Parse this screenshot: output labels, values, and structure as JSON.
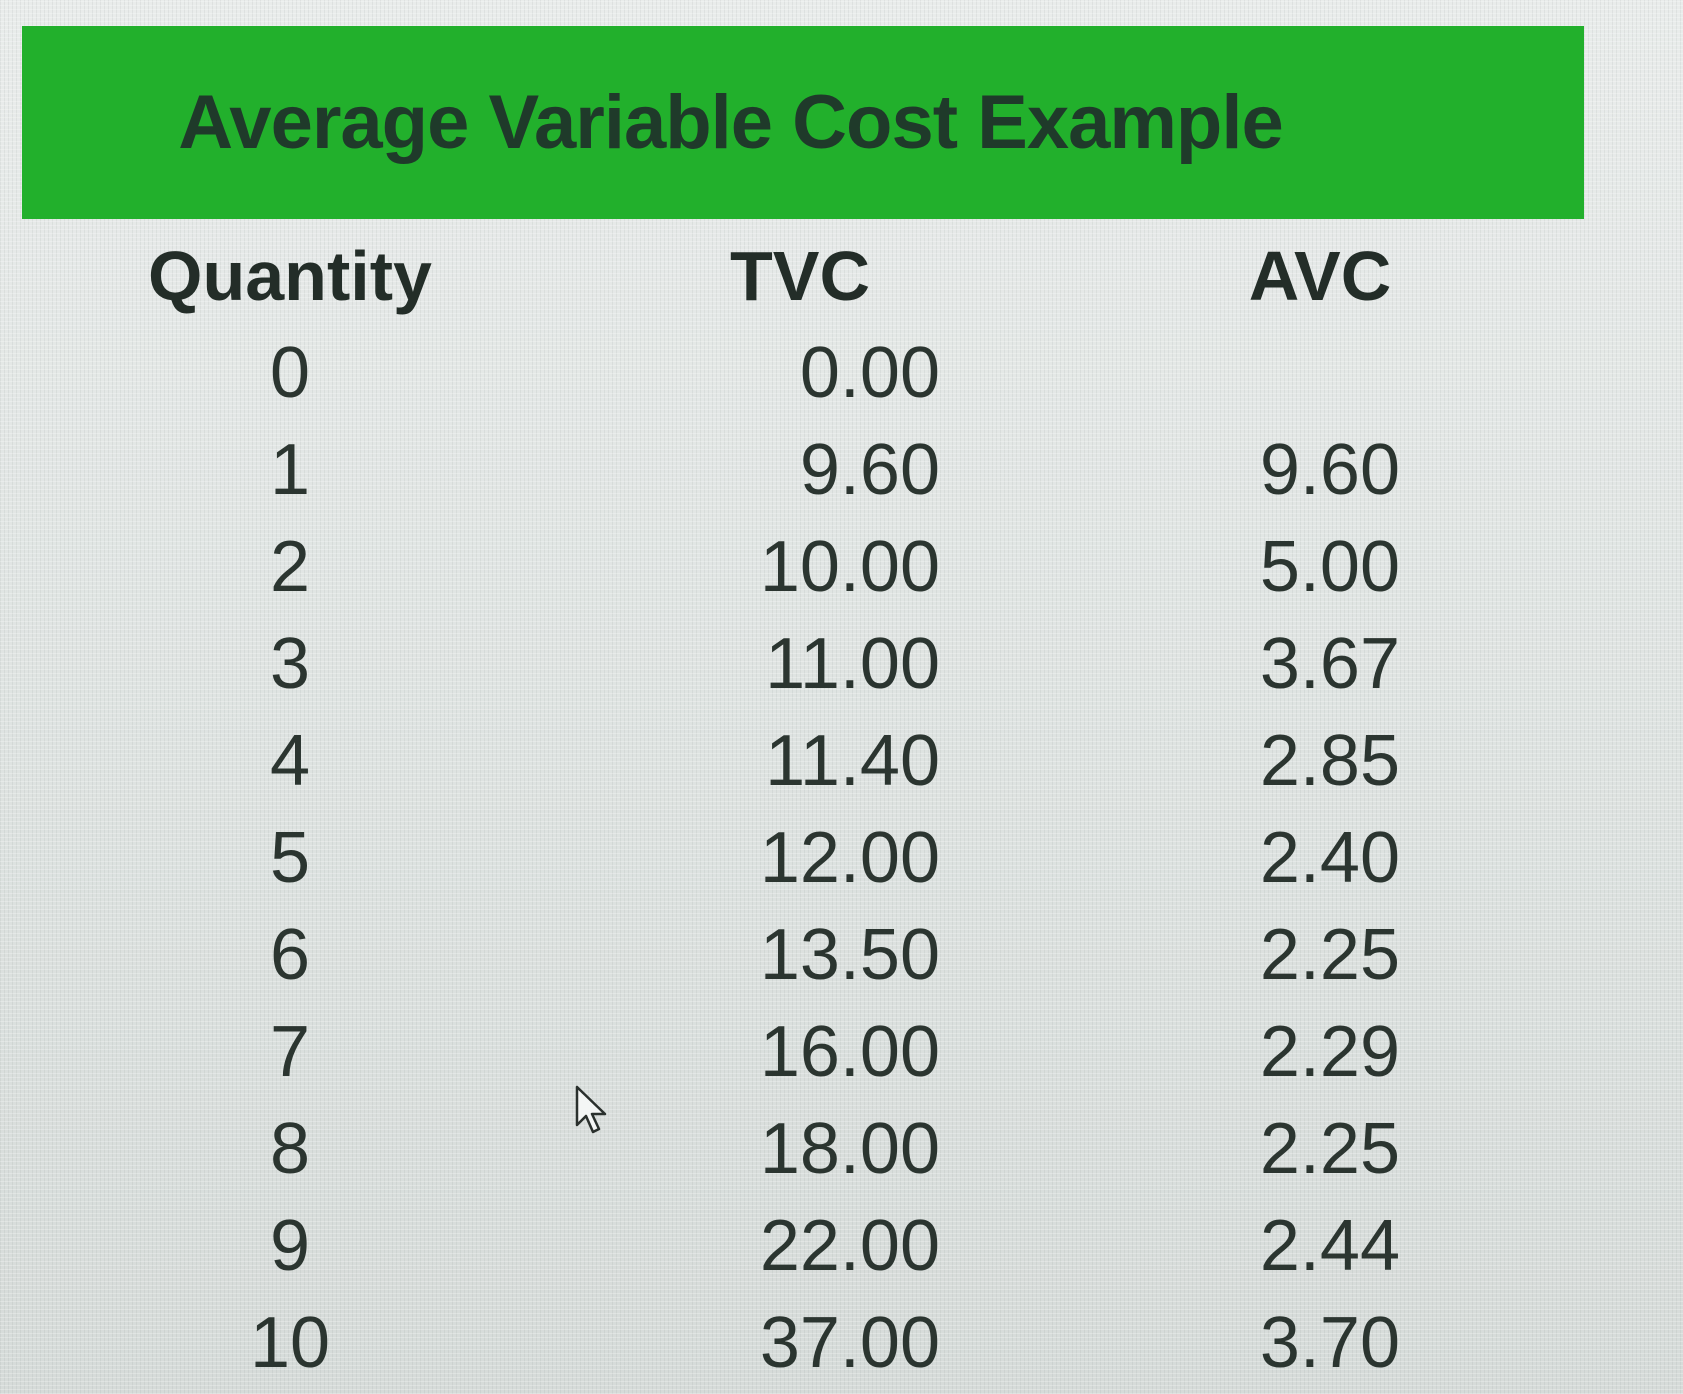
{
  "title": "Average Variable Cost Example",
  "columns": {
    "quantity": "Quantity",
    "tvc": "TVC",
    "avc": "AVC"
  },
  "rows": [
    {
      "quantity": "0",
      "tvc": "0.00",
      "avc": ""
    },
    {
      "quantity": "1",
      "tvc": "9.60",
      "avc": "9.60"
    },
    {
      "quantity": "2",
      "tvc": "10.00",
      "avc": "5.00"
    },
    {
      "quantity": "3",
      "tvc": "11.00",
      "avc": "3.67"
    },
    {
      "quantity": "4",
      "tvc": "11.40",
      "avc": "2.85"
    },
    {
      "quantity": "5",
      "tvc": "12.00",
      "avc": "2.40"
    },
    {
      "quantity": "6",
      "tvc": "13.50",
      "avc": "2.25"
    },
    {
      "quantity": "7",
      "tvc": "16.00",
      "avc": "2.29"
    },
    {
      "quantity": "8",
      "tvc": "18.00",
      "avc": "2.25"
    },
    {
      "quantity": "9",
      "tvc": "22.00",
      "avc": "2.44"
    },
    {
      "quantity": "10",
      "tvc": "37.00",
      "avc": "3.70"
    }
  ],
  "colors": {
    "title_background": "#22b02c",
    "title_text": "#1f3a2a",
    "body_text": "#2b3530"
  },
  "cursor": {
    "icon": "mouse-pointer-icon"
  }
}
